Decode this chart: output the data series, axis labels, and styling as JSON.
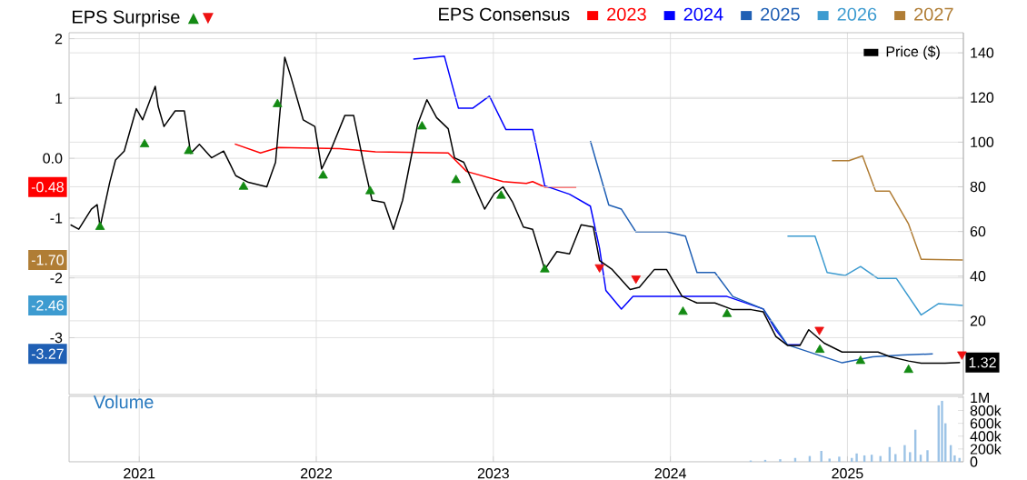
{
  "chart_data": [
    {
      "type": "line",
      "ylabel": "EPS Surprise",
      "legend_title": "EPS Consensus",
      "legend": "top right",
      "grid": true,
      "tick_labels": "y",
      "xlim": [
        "2020-08-09",
        "2025-08-28"
      ],
      "xticks": [
        "2021",
        "2022",
        "2023",
        "2024",
        "2025"
      ],
      "ylim": [
        -3.95,
        2.1
      ],
      "yticks": [
        2,
        1,
        {
          "value": 0,
          "label": "0.0"
        },
        -1,
        -2,
        -3
      ],
      "y2lim": [
        -13,
        149
      ],
      "y2ticks": [
        20,
        40,
        60,
        80,
        100,
        120,
        140
      ],
      "series": [
        {
          "name": "2023",
          "color": "#ff0000",
          "axis": "y",
          "x": [
            "2021-07-17",
            "2021-09-08",
            "2021-10-15",
            "2022-02-18",
            "2022-05-03",
            "2022-09-30",
            "2022-11-07",
            "2023-01-21",
            "2023-03-10",
            "2023-03-23",
            "2023-04-17",
            "2023-06-21"
          ],
          "values": [
            0.24,
            0.09,
            0.18,
            0.16,
            0.11,
            0.09,
            -0.22,
            -0.39,
            -0.42,
            -0.39,
            -0.48,
            -0.48
          ]
        },
        {
          "name": "2024",
          "color": "#0000ff",
          "axis": "y",
          "x": [
            "2022-07-20",
            "2022-09-22",
            "2022-10-21",
            "2022-11-20",
            "2022-12-24",
            "2023-01-27",
            "2023-03-23",
            "2023-04-17",
            "2023-06-07",
            "2023-07-20",
            "2023-08-08",
            "2023-08-21",
            "2023-09-22",
            "2023-10-16",
            "2023-12-24",
            "2024-04-27",
            "2024-07-11",
            "2024-08-06",
            "2024-08-30",
            "2024-09-25"
          ],
          "values": [
            1.66,
            1.71,
            0.84,
            0.84,
            1.04,
            0.48,
            0.48,
            -0.46,
            -0.6,
            -0.8,
            -1.51,
            -2.21,
            -2.52,
            -2.31,
            -2.31,
            -2.31,
            -2.52,
            -2.87,
            -3.12,
            -3.12
          ]
        },
        {
          "name": "2025",
          "color": "#1f5fb4",
          "axis": "y",
          "x": [
            "2023-07-20",
            "2023-08-27",
            "2023-09-22",
            "2023-10-22",
            "2023-12-24",
            "2024-02-01",
            "2024-02-25",
            "2024-04-02",
            "2024-05-09",
            "2024-07-11",
            "2024-08-30",
            "2024-12-21",
            "2025-02-22",
            "2025-04-24",
            "2025-06-26"
          ],
          "values": [
            0.29,
            -0.78,
            -0.85,
            -1.23,
            -1.23,
            -1.3,
            -1.91,
            -1.91,
            -2.31,
            -2.52,
            -3.12,
            -3.42,
            -3.32,
            -3.29,
            -3.27
          ]
        },
        {
          "name": "2026",
          "color": "#3d9bd0",
          "axis": "y",
          "x": [
            "2024-08-30",
            "2024-10-26",
            "2024-11-20",
            "2024-12-27",
            "2025-01-28",
            "2025-03-05",
            "2025-04-12",
            "2025-06-02",
            "2025-07-08",
            "2025-08-27"
          ],
          "values": [
            -1.3,
            -1.3,
            -1.91,
            -1.96,
            -1.81,
            -2.01,
            -2.01,
            -2.62,
            -2.43,
            -2.46
          ]
        },
        {
          "name": "2027",
          "color": "#b07d35",
          "axis": "y",
          "x": [
            "2024-11-30",
            "2025-01-04",
            "2025-02-01",
            "2025-02-28",
            "2025-03-29",
            "2025-05-07",
            "2025-06-02",
            "2025-08-27"
          ],
          "values": [
            -0.04,
            -0.04,
            0.04,
            -0.55,
            -0.55,
            -1.1,
            -1.69,
            -1.7
          ]
        },
        {
          "name": "Price ($)",
          "color": "#000000",
          "axis": "y2",
          "x": [
            "2020-08-12",
            "2020-08-29",
            "2020-09-24",
            "2020-10-06",
            "2020-10-12",
            "2020-11-01",
            "2020-11-13",
            "2020-12-01",
            "2020-12-26",
            "2021-01-08",
            "2021-02-03",
            "2021-02-09",
            "2021-02-21",
            "2021-03-16",
            "2021-04-04",
            "2021-04-17",
            "2021-05-05",
            "2021-05-30",
            "2021-06-24",
            "2021-07-19",
            "2021-08-14",
            "2021-09-21",
            "2021-10-09",
            "2021-10-28",
            "2021-11-10",
            "2021-12-05",
            "2021-12-29",
            "2022-01-12",
            "2022-01-30",
            "2022-03-01",
            "2022-03-19",
            "2022-04-08",
            "2022-04-26",
            "2022-05-21",
            "2022-06-09",
            "2022-06-28",
            "2022-07-29",
            "2022-08-17",
            "2022-09-06",
            "2022-09-30",
            "2022-10-13",
            "2022-11-01",
            "2022-11-20",
            "2022-12-14",
            "2023-01-03",
            "2023-01-21",
            "2023-02-10",
            "2023-03-04",
            "2023-03-23",
            "2023-04-17",
            "2023-05-12",
            "2023-06-07",
            "2023-07-01",
            "2023-07-26",
            "2023-08-08",
            "2023-09-03",
            "2023-10-10",
            "2023-10-29",
            "2023-11-29",
            "2023-12-24",
            "2024-01-25",
            "2024-02-25",
            "2024-04-02",
            "2024-05-09",
            "2024-06-16",
            "2024-07-11",
            "2024-08-06",
            "2024-08-30",
            "2024-09-25",
            "2024-10-13",
            "2024-11-14",
            "2024-12-21",
            "2025-01-28",
            "2025-03-05",
            "2025-03-29",
            "2025-05-07",
            "2025-06-02",
            "2025-07-21",
            "2025-08-21"
          ],
          "values": [
            63,
            61,
            70,
            72,
            62,
            82,
            92,
            96,
            115,
            110,
            125,
            116,
            107,
            114,
            114,
            95,
            99,
            93,
            96,
            85,
            82,
            80,
            91,
            138,
            129,
            110,
            107,
            88,
            96,
            112,
            112,
            91,
            74,
            73,
            61,
            74,
            108,
            119,
            111,
            106,
            93,
            91,
            82,
            70,
            77,
            80,
            73,
            62,
            61,
            43,
            51,
            50,
            63,
            62,
            47,
            43,
            34,
            35,
            43,
            43,
            31,
            28,
            28,
            25,
            25,
            24,
            13,
            9,
            9,
            16,
            10,
            6,
            6,
            6,
            4,
            2,
            1,
            1,
            1.32
          ],
          "value_labels": [
            null,
            null,
            null,
            null,
            null,
            null,
            null,
            null,
            null,
            null,
            null,
            null,
            null,
            null,
            null,
            null,
            null,
            null,
            null,
            null,
            null,
            null,
            null,
            null,
            null,
            null,
            null,
            null,
            null,
            null,
            null,
            null,
            null,
            null,
            null,
            null,
            null,
            null,
            null,
            null,
            null,
            null,
            null,
            null,
            null,
            null,
            null,
            null,
            null,
            null,
            null,
            null,
            null,
            null,
            null,
            null,
            null,
            null,
            null,
            null,
            null,
            null,
            null,
            null,
            null,
            null,
            null,
            null,
            null,
            null,
            null,
            null,
            null,
            null,
            null,
            null,
            null,
            null,
            "1.32"
          ]
        },
        {
          "type": "scatter",
          "color": "#138a13",
          "axis": "y2",
          "marker": "triangle",
          "x": [
            "2020-10-12",
            "2021-01-12",
            "2021-04-13",
            "2021-08-04",
            "2021-10-13",
            "2022-01-15",
            "2022-04-22",
            "2022-08-07",
            "2022-10-16",
            "2023-01-17",
            "2023-04-17",
            "2024-01-27",
            "2024-04-27",
            "2024-11-05",
            "2025-01-28",
            "2025-05-07"
          ],
          "values": [
            62,
            99,
            96,
            80,
            117,
            85,
            78,
            107,
            83,
            76,
            43,
            24,
            23,
            7,
            2,
            -2
          ]
        },
        {
          "type": "scatter",
          "color": "#ee1111",
          "axis": "y2",
          "marker": "triangle",
          "x": [
            "2023-08-08",
            "2023-10-22",
            "2024-11-04",
            "2025-08-25"
          ],
          "values": [
            44,
            39,
            16,
            5
          ]
        }
      ],
      "annotations": [
        {
          "text": "-0.48",
          "y": -0.48
        },
        {
          "text": "-1.70",
          "y": -1.7
        },
        {
          "text": "-2.46",
          "y": -2.46
        },
        {
          "text": "-3.27",
          "y": -3.27
        }
      ]
    },
    {
      "type": "bar",
      "title": "Volume",
      "grid": "x",
      "color": "#9cc3e6",
      "xlim": [
        "2020-08-09",
        "2025-08-28"
      ],
      "xticks": [
        "2021",
        "2022",
        "2023",
        "2024",
        "2025"
      ],
      "ylim": [
        0,
        1020000
      ],
      "yticks": [
        0,
        {
          "value": 200000,
          "label": "200k"
        },
        {
          "value": 400000,
          "label": "400k"
        },
        {
          "value": 600000,
          "label": "600k"
        },
        {
          "value": 800000,
          "label": "800k"
        },
        {
          "value": 1000000,
          "label": "1M"
        }
      ],
      "x": [
        "2024-06-15",
        "2024-07-15",
        "2024-08-15",
        "2024-09-15",
        "2024-10-15",
        "2024-11-08",
        "2024-11-25",
        "2024-12-15",
        "2025-01-10",
        "2025-01-20",
        "2025-02-05",
        "2025-02-20",
        "2025-03-10",
        "2025-03-29",
        "2025-04-10",
        "2025-04-29",
        "2025-05-10",
        "2025-05-21",
        "2025-06-01",
        "2025-06-15",
        "2025-07-08",
        "2025-07-15",
        "2025-07-22",
        "2025-08-02",
        "2025-08-10",
        "2025-08-20"
      ],
      "values": [
        20000,
        30000,
        40000,
        60000,
        90000,
        170000,
        50000,
        80000,
        60000,
        130000,
        100000,
        110000,
        90000,
        230000,
        120000,
        260000,
        150000,
        500000,
        110000,
        180000,
        880000,
        950000,
        600000,
        260000,
        100000,
        60000
      ]
    }
  ]
}
